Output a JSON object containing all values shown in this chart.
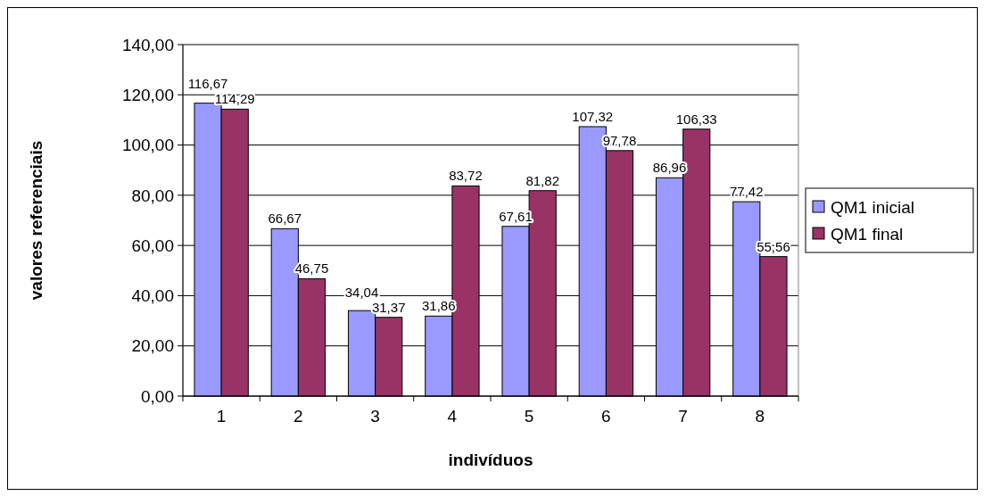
{
  "chart_data": {
    "type": "bar",
    "xlabel": "indivíduos",
    "ylabel": "valores referenciais",
    "categories": [
      "1",
      "2",
      "3",
      "4",
      "5",
      "6",
      "7",
      "8"
    ],
    "series": [
      {
        "name": "QM1 inicial",
        "color": "#9999ff",
        "values": [
          116.67,
          66.67,
          34.04,
          31.86,
          67.61,
          107.32,
          86.96,
          77.42
        ],
        "value_labels": [
          "116,67",
          "66,67",
          "34,04",
          "31,86",
          "67,61",
          "107,32",
          "86,96",
          "77,42"
        ]
      },
      {
        "name": "QM1 final",
        "color": "#993366",
        "values": [
          114.29,
          46.75,
          31.37,
          83.72,
          81.82,
          97.78,
          106.33,
          55.56
        ],
        "value_labels": [
          "114,29",
          "46,75",
          "31,37",
          "83,72",
          "81,82",
          "97,78",
          "106,33",
          "55,56"
        ]
      }
    ],
    "ylim": [
      0,
      140
    ],
    "yticks": [
      {
        "value": 0,
        "label": "0,00"
      },
      {
        "value": 20,
        "label": "20,00"
      },
      {
        "value": 40,
        "label": "40,00"
      },
      {
        "value": 60,
        "label": "60,00"
      },
      {
        "value": 80,
        "label": "80,00"
      },
      {
        "value": 100,
        "label": "100,00"
      },
      {
        "value": 120,
        "label": "120,00"
      },
      {
        "value": 140,
        "label": "140,00"
      }
    ],
    "grid": "y",
    "legend": "right"
  }
}
